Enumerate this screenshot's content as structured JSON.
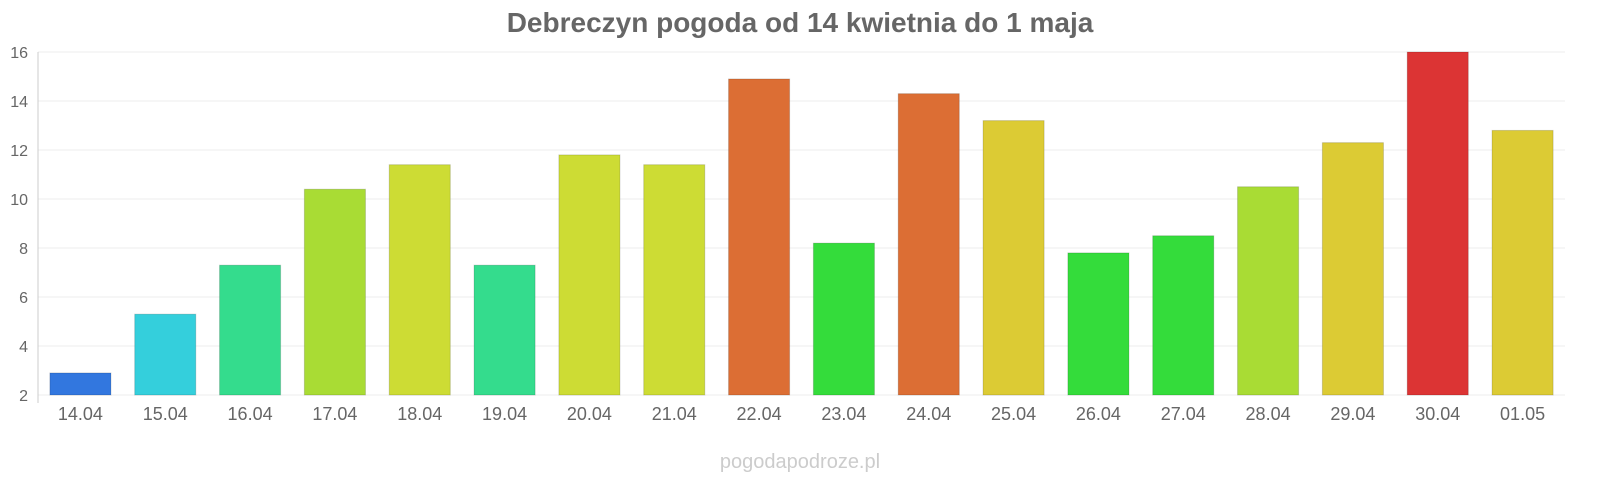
{
  "chart_data": {
    "type": "bar",
    "title": "Debreczyn pogoda od 14 kwietnia do 1 maja",
    "xlabel": "",
    "ylabel": "",
    "ylim": [
      2,
      16
    ],
    "yticks": [
      2,
      4,
      6,
      8,
      10,
      12,
      14,
      16
    ],
    "grid": true,
    "legend": "none",
    "categories": [
      "14.04",
      "15.04",
      "16.04",
      "17.04",
      "18.04",
      "19.04",
      "20.04",
      "21.04",
      "22.04",
      "23.04",
      "24.04",
      "25.04",
      "26.04",
      "27.04",
      "28.04",
      "29.04",
      "30.04",
      "01.05"
    ],
    "values": [
      2.9,
      5.3,
      7.3,
      10.4,
      11.4,
      7.3,
      11.8,
      11.4,
      14.9,
      8.2,
      14.3,
      13.2,
      7.8,
      8.5,
      10.5,
      12.3,
      16.0,
      12.8
    ],
    "colors": [
      "#3277df",
      "#34cfdc",
      "#34dc8d",
      "#a9dc34",
      "#cddc34",
      "#34dc8d",
      "#cddc34",
      "#cddc34",
      "#dc6e34",
      "#34dc3b",
      "#dc6e34",
      "#dccb34",
      "#34dc3b",
      "#34dc3b",
      "#a9dc34",
      "#dccb34",
      "#dc3434",
      "#dccb34"
    ]
  },
  "credit": "pogodapodroze.pl"
}
